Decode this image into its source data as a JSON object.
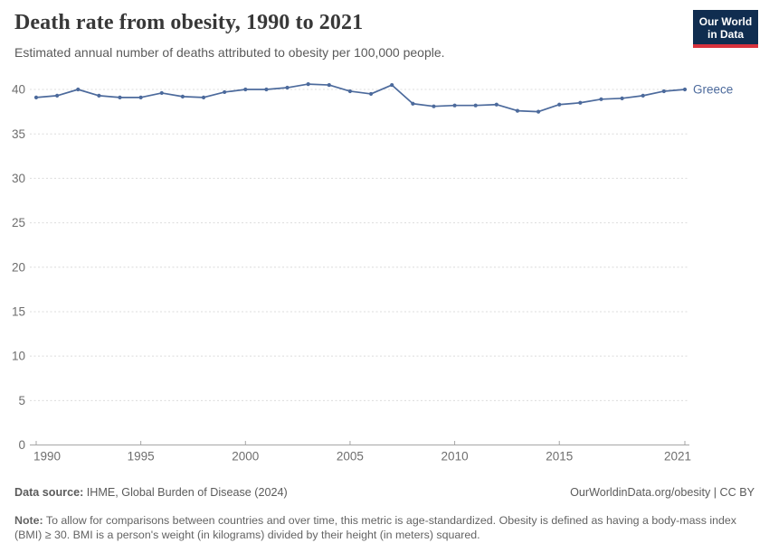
{
  "header": {
    "title": "Death rate from obesity, 1990 to 2021",
    "subtitle": "Estimated annual number of deaths attributed to obesity per 100,000 people.",
    "logo": {
      "line1": "Our World",
      "line2": "in Data",
      "bg": "#102d50",
      "accent": "#d8323d"
    }
  },
  "chart_data": {
    "type": "line",
    "title": "Death rate from obesity, 1990 to 2021",
    "subtitle": "Estimated annual number of deaths attributed to obesity per 100,000 people.",
    "xlabel": "",
    "ylabel": "",
    "xlim": [
      1990,
      2021
    ],
    "ylim": [
      0,
      42
    ],
    "x_ticks": [
      1990,
      1995,
      2000,
      2005,
      2010,
      2015,
      2021
    ],
    "y_ticks": [
      0,
      5,
      10,
      15,
      20,
      25,
      30,
      35,
      40
    ],
    "grid": "dashed-horizontal",
    "legend_position": "end-of-line-label",
    "x": [
      1990,
      1991,
      1992,
      1993,
      1994,
      1995,
      1996,
      1997,
      1998,
      1999,
      2000,
      2001,
      2002,
      2003,
      2004,
      2005,
      2006,
      2007,
      2008,
      2009,
      2010,
      2011,
      2012,
      2013,
      2014,
      2015,
      2016,
      2017,
      2018,
      2019,
      2020,
      2021
    ],
    "series": [
      {
        "name": "Greece",
        "color": "#4C6A9C",
        "values": [
          39.1,
          39.3,
          40.0,
          39.3,
          39.1,
          39.1,
          39.6,
          39.2,
          39.1,
          39.7,
          40.0,
          40.0,
          40.2,
          40.6,
          40.5,
          39.8,
          39.5,
          40.5,
          38.4,
          38.1,
          38.2,
          38.2,
          38.3,
          37.6,
          37.5,
          38.3,
          38.5,
          38.9,
          39.0,
          39.3,
          39.8,
          40.0
        ]
      }
    ]
  },
  "footer": {
    "datasource_label": "Data source:",
    "datasource": " IHME, Global Burden of Disease (2024)",
    "rights": "OurWorldinData.org/obesity | CC BY",
    "note_label": "Note:",
    "note": " To allow for comparisons between countries and over time, this metric is age-standardized. Obesity is defined as having a body-mass index (BMI) ≥ 30. BMI is a person's weight (in kilograms) divided by their height (in meters) squared."
  }
}
